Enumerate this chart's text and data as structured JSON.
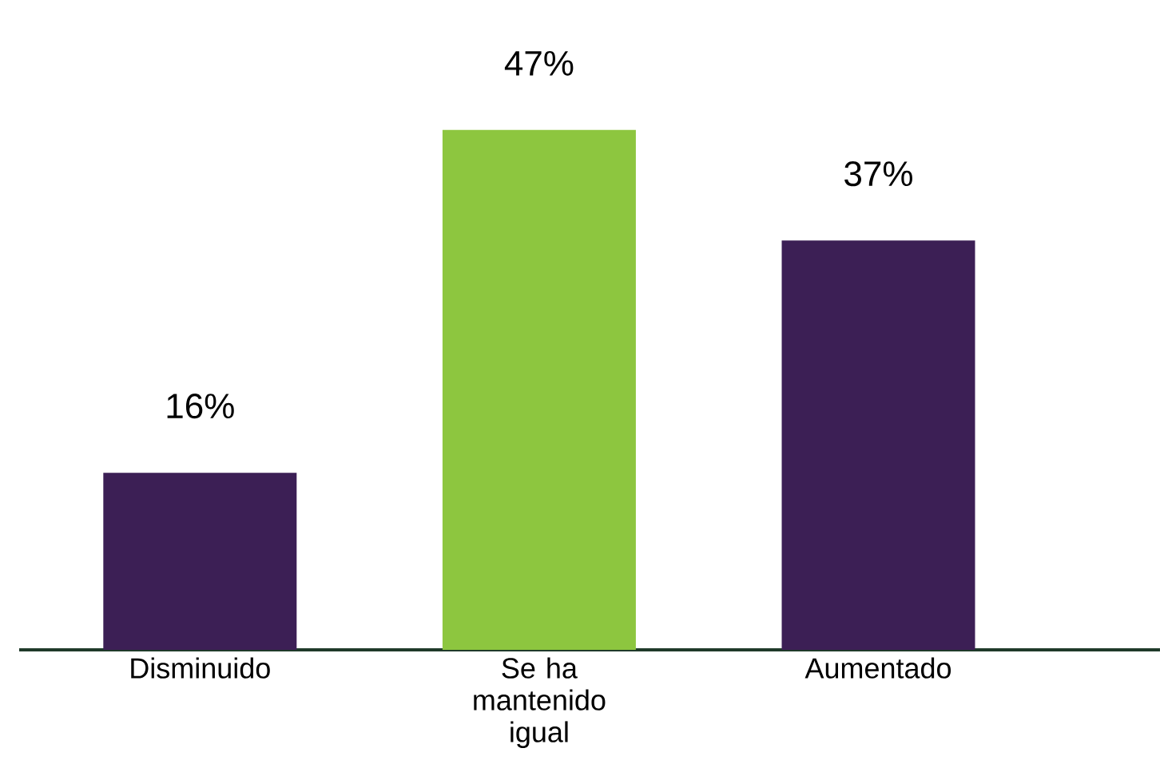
{
  "chart_data": {
    "type": "bar",
    "categories": [
      "Disminuido",
      "Se ha mantenido igual",
      "Aumentado"
    ],
    "values": [
      16,
      47,
      37
    ],
    "colors": [
      "#3c1f55",
      "#8dc63f",
      "#3c1f55"
    ],
    "value_labels": [
      "16%",
      "47%",
      "37%"
    ]
  }
}
